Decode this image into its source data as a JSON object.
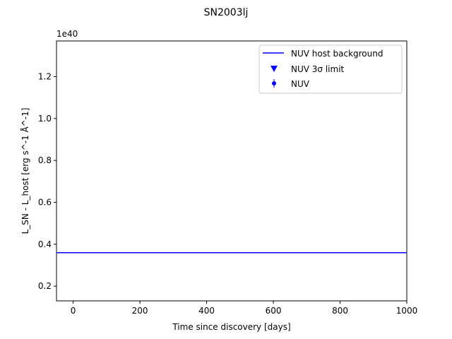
{
  "chart_data": {
    "type": "line",
    "title": "SN2003lj",
    "xlabel": "Time since discovery [days]",
    "ylabel": "L_SN - L_host [erg s^-1 Å^-1]",
    "y_offset_label": "1e40",
    "xlim": [
      -50,
      1000
    ],
    "ylim": [
      0.13,
      1.37
    ],
    "x_ticks": [
      0,
      200,
      400,
      600,
      800,
      1000
    ],
    "y_ticks": [
      0.2,
      0.4,
      0.6,
      0.8,
      1.0,
      1.2
    ],
    "x_tick_labels": [
      "0",
      "200",
      "400",
      "600",
      "800",
      "1000"
    ],
    "y_tick_labels": [
      "0.2",
      "0.4",
      "0.6",
      "0.8",
      "1.0",
      "1.2"
    ],
    "grid": false,
    "legend_position": "top-right",
    "series": [
      {
        "name": "NUV host background",
        "kind": "hline",
        "y": 0.36,
        "color": "#0000ff",
        "visible": true
      },
      {
        "name": "NUV 3σ limit",
        "kind": "marker",
        "marker": "triangle-down-icon",
        "color": "#0000ff",
        "points": []
      },
      {
        "name": "NUV",
        "kind": "errorbar",
        "marker": "circle-icon",
        "color": "#0000ff",
        "points": []
      }
    ]
  }
}
